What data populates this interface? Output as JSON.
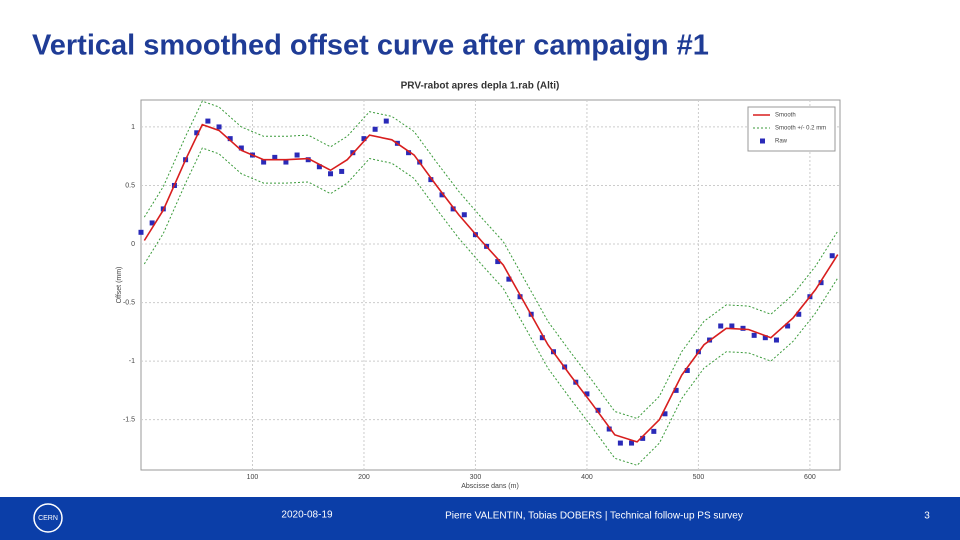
{
  "slide": {
    "title": "Vertical smoothed offset curve after campaign #1",
    "date": "2020-08-19",
    "footer": "Pierre VALENTIN, Tobias DOBERS | Technical follow-up PS survey",
    "page": "3",
    "logo": "CERN"
  },
  "chart_data": {
    "type": "line",
    "title": "PRV-rabot apres depla 1.rab (Alti)",
    "x_label": "Abscisse dans (m)",
    "y_label": "Offset (mm)",
    "xlim": [
      0,
      627
    ],
    "ylim": [
      -1.93,
      1.23
    ],
    "xticks": [
      100,
      200,
      300,
      400,
      500,
      600
    ],
    "yticks": [
      1,
      0.5,
      0,
      -0.5,
      -1,
      -1.5
    ],
    "grid": true,
    "legend": "top-right",
    "series": [
      {
        "name": "Smooth",
        "color": "#d81e1e",
        "x": [
          3,
          20,
          40,
          55,
          70,
          90,
          110,
          130,
          150,
          170,
          185,
          205,
          225,
          245,
          265,
          285,
          305,
          325,
          345,
          365,
          385,
          405,
          425,
          445,
          465,
          485,
          505,
          525,
          545,
          565,
          585,
          605,
          625
        ],
        "values": [
          0.03,
          0.29,
          0.72,
          1.02,
          0.97,
          0.8,
          0.72,
          0.72,
          0.73,
          0.63,
          0.72,
          0.93,
          0.89,
          0.76,
          0.5,
          0.25,
          0.03,
          -0.18,
          -0.52,
          -0.86,
          -1.12,
          -1.37,
          -1.63,
          -1.69,
          -1.5,
          -1.12,
          -0.86,
          -0.72,
          -0.73,
          -0.8,
          -0.63,
          -0.39,
          -0.09
        ]
      },
      {
        "name": "Smooth +/- 0.2 mm",
        "color": "#3a9a3a",
        "x": [
          3,
          20,
          40,
          55,
          70,
          90,
          110,
          130,
          150,
          170,
          185,
          205,
          225,
          245,
          265,
          285,
          305,
          325,
          345,
          365,
          385,
          405,
          425,
          445,
          465,
          485,
          505,
          525,
          545,
          565,
          585,
          605,
          625
        ],
        "values": [
          0.23,
          0.49,
          0.92,
          1.22,
          1.17,
          1.0,
          0.92,
          0.92,
          0.93,
          0.83,
          0.92,
          1.13,
          1.09,
          0.96,
          0.7,
          0.45,
          0.23,
          0.02,
          -0.32,
          -0.66,
          -0.92,
          -1.17,
          -1.43,
          -1.49,
          -1.3,
          -0.92,
          -0.66,
          -0.52,
          -0.53,
          -0.6,
          -0.43,
          -0.19,
          0.11
        ],
        "lower": [
          -0.17,
          0.09,
          0.52,
          0.82,
          0.77,
          0.6,
          0.52,
          0.52,
          0.53,
          0.43,
          0.52,
          0.73,
          0.69,
          0.56,
          0.3,
          0.05,
          -0.17,
          -0.38,
          -0.72,
          -1.06,
          -1.32,
          -1.57,
          -1.83,
          -1.89,
          -1.7,
          -1.32,
          -1.06,
          -0.92,
          -0.93,
          -1.0,
          -0.83,
          -0.59,
          -0.29
        ]
      },
      {
        "name": "Raw",
        "color": "#2a2ab8",
        "x": [
          0,
          10,
          20,
          30,
          40,
          50,
          60,
          70,
          80,
          90,
          100,
          110,
          120,
          130,
          140,
          150,
          160,
          170,
          180,
          190,
          200,
          210,
          220,
          230,
          240,
          250,
          260,
          270,
          280,
          290,
          300,
          310,
          320,
          330,
          340,
          350,
          360,
          370,
          380,
          390,
          400,
          410,
          420,
          430,
          440,
          450,
          460,
          470,
          480,
          490,
          500,
          510,
          520,
          530,
          540,
          550,
          560,
          570,
          580,
          590,
          600,
          610,
          620
        ],
        "values": [
          0.1,
          0.18,
          0.3,
          0.5,
          0.72,
          0.95,
          1.05,
          1.0,
          0.9,
          0.82,
          0.76,
          0.7,
          0.74,
          0.7,
          0.76,
          0.72,
          0.66,
          0.6,
          0.62,
          0.78,
          0.9,
          0.98,
          1.05,
          0.86,
          0.78,
          0.7,
          0.55,
          0.42,
          0.3,
          0.25,
          0.08,
          -0.02,
          -0.15,
          -0.3,
          -0.45,
          -0.6,
          -0.8,
          -0.92,
          -1.05,
          -1.18,
          -1.28,
          -1.42,
          -1.58,
          -1.7,
          -1.7,
          -1.66,
          -1.6,
          -1.45,
          -1.25,
          -1.08,
          -0.92,
          -0.82,
          -0.7,
          -0.7,
          -0.72,
          -0.78,
          -0.8,
          -0.82,
          -0.7,
          -0.6,
          -0.45,
          -0.33,
          -0.1
        ]
      }
    ]
  }
}
